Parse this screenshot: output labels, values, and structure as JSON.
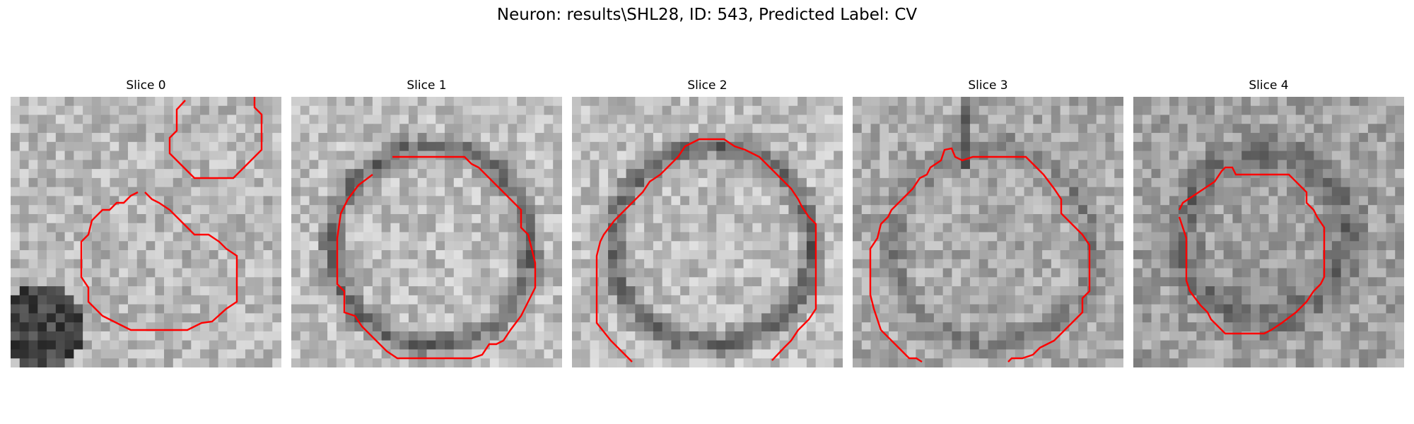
{
  "figure": {
    "title": "Neuron: results\\SHL28, ID: 543, Predicted Label: CV",
    "contour_color": "#ff0000"
  },
  "panels": [
    {
      "title": "Slice 0"
    },
    {
      "title": "Slice 1"
    },
    {
      "title": "Slice 2"
    },
    {
      "title": "Slice 3"
    },
    {
      "title": "Slice 4"
    }
  ]
}
